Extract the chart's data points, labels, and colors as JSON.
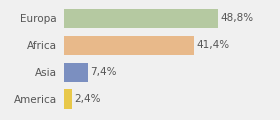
{
  "categories": [
    "Europa",
    "Africa",
    "Asia",
    "America"
  ],
  "values": [
    48.8,
    41.4,
    7.4,
    2.4
  ],
  "labels": [
    "48,8%",
    "41,4%",
    "7,4%",
    "2,4%"
  ],
  "bar_colors": [
    "#b5c9a1",
    "#e8b98a",
    "#7b8fc0",
    "#e8c84a"
  ],
  "background_color": "#f0f0f0",
  "xlim": [
    0,
    58
  ],
  "bar_height": 0.72,
  "label_fontsize": 7.5,
  "category_fontsize": 7.5
}
